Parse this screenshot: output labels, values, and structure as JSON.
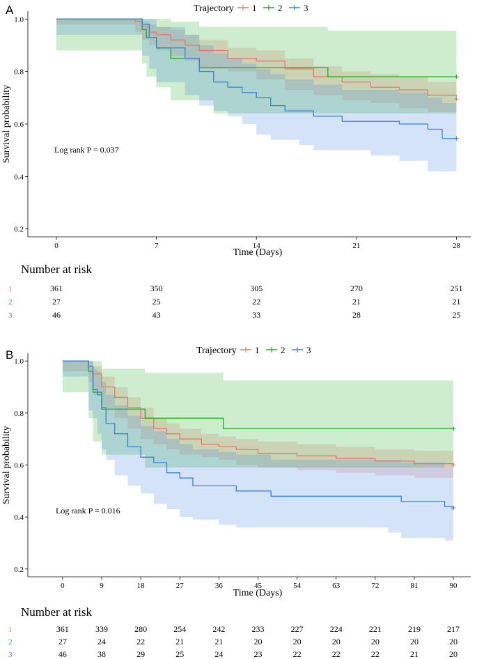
{
  "colors": {
    "1": "#e8766d",
    "2": "#22aa22",
    "3": "#3a7fd9"
  },
  "chart_data": [
    {
      "panel": "A",
      "type": "line",
      "subtype": "kaplan-meier",
      "legend_title": "Trajectory",
      "legend_labels": [
        "1",
        "2",
        "3"
      ],
      "xlabel": "Time (Days)",
      "ylabel": "Survival probability",
      "xlim": [
        -2,
        29
      ],
      "ylim": [
        0.17,
        1.03
      ],
      "xticks": [
        0,
        7,
        14,
        21,
        28
      ],
      "yticks": [
        0.2,
        0.4,
        0.6,
        0.8,
        1.0
      ],
      "ytick_labels": [
        "0.2",
        "0.4",
        "0.6",
        "0.8",
        "1.0"
      ],
      "annotation": "Log rank P = 0.037",
      "series": [
        {
          "name": "1",
          "x": [
            0,
            5.5,
            6,
            6.5,
            7,
            8,
            9,
            10,
            12,
            14,
            16,
            18,
            20,
            22,
            24,
            26,
            28
          ],
          "y": [
            1.0,
            0.99,
            0.97,
            0.95,
            0.94,
            0.92,
            0.9,
            0.88,
            0.85,
            0.84,
            0.81,
            0.78,
            0.76,
            0.74,
            0.73,
            0.71,
            0.695
          ],
          "lower": [
            1.0,
            0.98,
            0.95,
            0.92,
            0.9,
            0.88,
            0.86,
            0.84,
            0.81,
            0.8,
            0.77,
            0.73,
            0.71,
            0.69,
            0.68,
            0.66,
            0.645
          ],
          "upper": [
            1.0,
            1.0,
            0.99,
            0.98,
            0.97,
            0.96,
            0.94,
            0.92,
            0.89,
            0.88,
            0.85,
            0.82,
            0.8,
            0.79,
            0.78,
            0.76,
            0.745
          ]
        },
        {
          "name": "2",
          "x": [
            0,
            6,
            6.3,
            7,
            8,
            10,
            11,
            19,
            28
          ],
          "y": [
            1.0,
            0.96,
            0.93,
            0.89,
            0.85,
            0.815,
            0.815,
            0.78,
            0.78
          ],
          "lower": [
            1.0,
            0.88,
            0.83,
            0.78,
            0.74,
            0.69,
            0.69,
            0.64,
            0.64
          ],
          "upper": [
            1.0,
            1.0,
            1.0,
            1.0,
            0.99,
            0.97,
            0.97,
            0.955,
            0.955
          ]
        },
        {
          "name": "3",
          "x": [
            0,
            6,
            6.5,
            7,
            9,
            10,
            11,
            12,
            13,
            14,
            15,
            16,
            17,
            18,
            20,
            22,
            24,
            26,
            27,
            28
          ],
          "y": [
            1.0,
            0.98,
            0.93,
            0.89,
            0.85,
            0.8,
            0.76,
            0.74,
            0.72,
            0.7,
            0.67,
            0.65,
            0.65,
            0.63,
            0.61,
            0.61,
            0.6,
            0.58,
            0.545,
            0.545
          ],
          "lower": [
            1.0,
            0.94,
            0.86,
            0.81,
            0.76,
            0.71,
            0.67,
            0.65,
            0.63,
            0.6,
            0.56,
            0.54,
            0.54,
            0.52,
            0.5,
            0.5,
            0.48,
            0.46,
            0.42,
            0.42
          ],
          "upper": [
            1.0,
            1.0,
            1.0,
            0.97,
            0.94,
            0.9,
            0.87,
            0.85,
            0.83,
            0.81,
            0.79,
            0.77,
            0.77,
            0.75,
            0.73,
            0.73,
            0.72,
            0.7,
            0.68,
            0.68
          ]
        }
      ],
      "risk_table": {
        "title": "Number at risk",
        "times": [
          0,
          7,
          14,
          21,
          28
        ],
        "rows": [
          {
            "label": "1",
            "values": [
              "361",
              "350",
              "305",
              "270",
              "251"
            ]
          },
          {
            "label": "2",
            "values": [
              "27",
              "25",
              "22",
              "21",
              "21"
            ]
          },
          {
            "label": "3",
            "values": [
              "46",
              "43",
              "33",
              "28",
              "25"
            ]
          }
        ]
      }
    },
    {
      "panel": "B",
      "type": "line",
      "subtype": "kaplan-meier",
      "legend_title": "Trajectory",
      "legend_labels": [
        "1",
        "2",
        "3"
      ],
      "xlabel": "Time (Days)",
      "ylabel": "Survival probability",
      "xlim": [
        -8,
        94
      ],
      "ylim": [
        0.17,
        1.03
      ],
      "xticks": [
        0,
        9,
        18,
        27,
        36,
        45,
        54,
        63,
        72,
        81,
        90
      ],
      "yticks": [
        0.2,
        0.4,
        0.6,
        0.8,
        1.0
      ],
      "ytick_labels": [
        "0.2",
        "0.4",
        "0.6",
        "0.8",
        "1.0"
      ],
      "annotation": "Log rank P = 0.016",
      "series": [
        {
          "name": "1",
          "x": [
            0,
            6,
            7,
            9,
            12,
            15,
            18,
            21,
            24,
            27,
            32,
            36,
            40,
            45,
            54,
            63,
            72,
            81,
            90
          ],
          "y": [
            1.0,
            0.98,
            0.95,
            0.9,
            0.86,
            0.82,
            0.78,
            0.74,
            0.72,
            0.7,
            0.68,
            0.67,
            0.66,
            0.645,
            0.635,
            0.625,
            0.615,
            0.605,
            0.6
          ],
          "lower": [
            1.0,
            0.96,
            0.92,
            0.87,
            0.82,
            0.78,
            0.74,
            0.7,
            0.68,
            0.66,
            0.64,
            0.63,
            0.62,
            0.6,
            0.59,
            0.58,
            0.57,
            0.56,
            0.55
          ],
          "upper": [
            1.0,
            1.0,
            0.98,
            0.94,
            0.9,
            0.86,
            0.82,
            0.78,
            0.76,
            0.74,
            0.72,
            0.71,
            0.7,
            0.69,
            0.68,
            0.67,
            0.66,
            0.655,
            0.65
          ]
        },
        {
          "name": "2",
          "x": [
            0,
            6,
            7,
            9,
            19,
            37,
            90
          ],
          "y": [
            1.0,
            0.96,
            0.88,
            0.815,
            0.78,
            0.74,
            0.74
          ],
          "lower": [
            1.0,
            0.88,
            0.78,
            0.69,
            0.64,
            0.59,
            0.59
          ],
          "upper": [
            1.0,
            1.0,
            1.0,
            0.97,
            0.955,
            0.925,
            0.925
          ]
        },
        {
          "name": "3",
          "x": [
            0,
            6,
            7,
            8,
            9,
            10,
            12,
            15,
            18,
            21,
            24,
            27,
            30,
            36,
            40,
            48,
            60,
            75,
            78,
            88,
            90
          ],
          "y": [
            1.0,
            0.98,
            0.89,
            0.87,
            0.82,
            0.76,
            0.72,
            0.67,
            0.63,
            0.61,
            0.57,
            0.55,
            0.52,
            0.52,
            0.5,
            0.48,
            0.48,
            0.48,
            0.46,
            0.44,
            0.435
          ],
          "lower": [
            1.0,
            0.94,
            0.81,
            0.78,
            0.72,
            0.66,
            0.62,
            0.56,
            0.52,
            0.49,
            0.45,
            0.43,
            0.4,
            0.39,
            0.37,
            0.36,
            0.36,
            0.36,
            0.34,
            0.32,
            0.31
          ],
          "upper": [
            1.0,
            1.0,
            0.97,
            0.96,
            0.92,
            0.87,
            0.83,
            0.79,
            0.75,
            0.73,
            0.7,
            0.68,
            0.66,
            0.65,
            0.64,
            0.62,
            0.62,
            0.62,
            0.61,
            0.59,
            0.58
          ]
        }
      ],
      "risk_table": {
        "title": "Number at risk",
        "times": [
          0,
          9,
          18,
          27,
          36,
          45,
          54,
          63,
          72,
          81,
          90
        ],
        "rows": [
          {
            "label": "1",
            "values": [
              "361",
              "339",
              "280",
              "254",
              "242",
              "233",
              "227",
              "224",
              "221",
              "219",
              "217"
            ]
          },
          {
            "label": "2",
            "values": [
              "27",
              "24",
              "22",
              "21",
              "21",
              "20",
              "20",
              "20",
              "20",
              "20",
              "20"
            ]
          },
          {
            "label": "3",
            "values": [
              "46",
              "38",
              "29",
              "25",
              "24",
              "23",
              "22",
              "22",
              "22",
              "21",
              "20"
            ]
          }
        ]
      }
    }
  ]
}
